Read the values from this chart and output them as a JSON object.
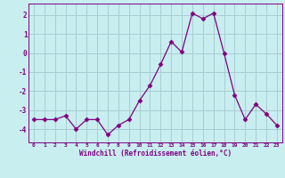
{
  "x": [
    0,
    1,
    2,
    3,
    4,
    5,
    6,
    7,
    8,
    9,
    10,
    11,
    12,
    13,
    14,
    15,
    16,
    17,
    18,
    19,
    20,
    21,
    22,
    23
  ],
  "y": [
    -3.5,
    -3.5,
    -3.5,
    -3.3,
    -4.0,
    -3.5,
    -3.5,
    -4.3,
    -3.8,
    -3.5,
    -2.5,
    -1.7,
    -0.6,
    0.6,
    0.05,
    2.1,
    1.8,
    2.1,
    0.0,
    -2.2,
    -3.5,
    -2.7,
    -3.2,
    -3.8
  ],
  "line_color": "#800080",
  "marker": "D",
  "marker_size": 2.5,
  "bg_color": "#c8eef0",
  "grid_color": "#a8ccd4",
  "tick_color": "#800080",
  "label_color": "#800080",
  "xlabel": "Windchill (Refroidissement éolien,°C)",
  "yticks": [
    -4,
    -3,
    -2,
    -1,
    0,
    1,
    2
  ],
  "ylim": [
    -4.7,
    2.6
  ],
  "xlim": [
    -0.5,
    23.5
  ]
}
